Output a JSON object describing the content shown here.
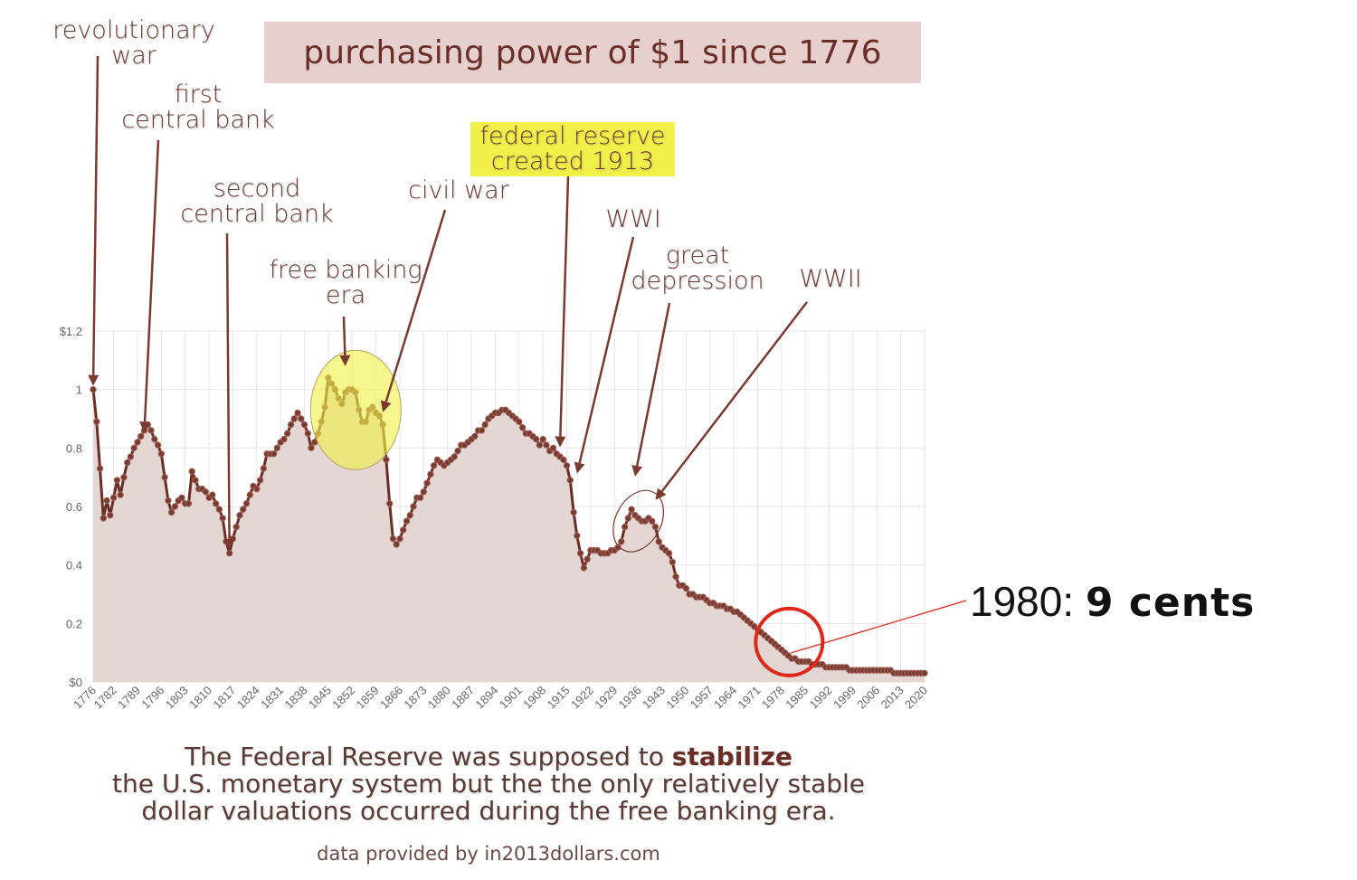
{
  "chart_data": {
    "type": "area",
    "title": "purchasing power of $1 since 1776",
    "xlabel": "",
    "ylabel": "",
    "xlim": [
      1776,
      2020
    ],
    "ylim": [
      0,
      1.2
    ],
    "grid": true,
    "y_ticks": [
      "$0",
      "0.2",
      "0.4",
      "0.6",
      "0.8",
      "1",
      "$1.2"
    ],
    "x_ticks": [
      "1776",
      "1782",
      "1789",
      "1796",
      "1803",
      "1810",
      "1817",
      "1824",
      "1831",
      "1838",
      "1845",
      "1852",
      "1859",
      "1866",
      "1873",
      "1880",
      "1887",
      "1894",
      "1901",
      "1908",
      "1915",
      "1922",
      "1929",
      "1936",
      "1943",
      "1950",
      "1957",
      "1964",
      "1971",
      "1978",
      "1985",
      "1992",
      "1999",
      "2006",
      "2013",
      "2020"
    ],
    "series": [
      {
        "line_color": "#6b2e26",
        "fill_color": "#e3d6d3",
        "points": [
          [
            1776,
            1.0
          ],
          [
            1777,
            0.89
          ],
          [
            1778,
            0.73
          ],
          [
            1779,
            0.56
          ],
          [
            1780,
            0.62
          ],
          [
            1781,
            0.57
          ],
          [
            1782,
            0.63
          ],
          [
            1783,
            0.69
          ],
          [
            1784,
            0.64
          ],
          [
            1785,
            0.7
          ],
          [
            1786,
            0.75
          ],
          [
            1787,
            0.77
          ],
          [
            1788,
            0.8
          ],
          [
            1789,
            0.82
          ],
          [
            1790,
            0.84
          ],
          [
            1791,
            0.86
          ],
          [
            1792,
            0.88
          ],
          [
            1793,
            0.86
          ],
          [
            1794,
            0.83
          ],
          [
            1795,
            0.81
          ],
          [
            1796,
            0.78
          ],
          [
            1797,
            0.7
          ],
          [
            1798,
            0.62
          ],
          [
            1799,
            0.58
          ],
          [
            1800,
            0.6
          ],
          [
            1801,
            0.62
          ],
          [
            1802,
            0.63
          ],
          [
            1803,
            0.61
          ],
          [
            1804,
            0.61
          ],
          [
            1805,
            0.72
          ],
          [
            1806,
            0.69
          ],
          [
            1807,
            0.66
          ],
          [
            1808,
            0.66
          ],
          [
            1809,
            0.65
          ],
          [
            1810,
            0.63
          ],
          [
            1811,
            0.64
          ],
          [
            1812,
            0.61
          ],
          [
            1813,
            0.59
          ],
          [
            1814,
            0.56
          ],
          [
            1815,
            0.48
          ],
          [
            1816,
            0.44
          ],
          [
            1817,
            0.49
          ],
          [
            1818,
            0.53
          ],
          [
            1819,
            0.57
          ],
          [
            1820,
            0.59
          ],
          [
            1821,
            0.61
          ],
          [
            1822,
            0.64
          ],
          [
            1823,
            0.67
          ],
          [
            1824,
            0.66
          ],
          [
            1825,
            0.69
          ],
          [
            1826,
            0.73
          ],
          [
            1827,
            0.78
          ],
          [
            1828,
            0.78
          ],
          [
            1829,
            0.78
          ],
          [
            1830,
            0.8
          ],
          [
            1831,
            0.82
          ],
          [
            1832,
            0.83
          ],
          [
            1833,
            0.85
          ],
          [
            1834,
            0.88
          ],
          [
            1835,
            0.9
          ],
          [
            1836,
            0.92
          ],
          [
            1837,
            0.9
          ],
          [
            1838,
            0.88
          ],
          [
            1839,
            0.85
          ],
          [
            1840,
            0.8
          ],
          [
            1841,
            0.82
          ],
          [
            1842,
            0.85
          ],
          [
            1843,
            0.89
          ],
          [
            1844,
            0.94
          ],
          [
            1845,
            1.04
          ],
          [
            1846,
            1.02
          ],
          [
            1847,
            1.0
          ],
          [
            1848,
            0.97
          ],
          [
            1849,
            0.95
          ],
          [
            1850,
            0.99
          ],
          [
            1851,
            1.0
          ],
          [
            1852,
            1.0
          ],
          [
            1853,
            0.99
          ],
          [
            1854,
            0.93
          ],
          [
            1855,
            0.89
          ],
          [
            1856,
            0.89
          ],
          [
            1857,
            0.93
          ],
          [
            1858,
            0.94
          ],
          [
            1859,
            0.92
          ],
          [
            1860,
            0.91
          ],
          [
            1861,
            0.88
          ],
          [
            1862,
            0.76
          ],
          [
            1863,
            0.61
          ],
          [
            1864,
            0.49
          ],
          [
            1865,
            0.47
          ],
          [
            1866,
            0.49
          ],
          [
            1867,
            0.52
          ],
          [
            1868,
            0.55
          ],
          [
            1869,
            0.57
          ],
          [
            1870,
            0.6
          ],
          [
            1871,
            0.63
          ],
          [
            1872,
            0.63
          ],
          [
            1873,
            0.65
          ],
          [
            1874,
            0.68
          ],
          [
            1875,
            0.71
          ],
          [
            1876,
            0.74
          ],
          [
            1877,
            0.76
          ],
          [
            1878,
            0.75
          ],
          [
            1879,
            0.74
          ],
          [
            1880,
            0.75
          ],
          [
            1881,
            0.76
          ],
          [
            1882,
            0.77
          ],
          [
            1883,
            0.79
          ],
          [
            1884,
            0.81
          ],
          [
            1885,
            0.81
          ],
          [
            1886,
            0.82
          ],
          [
            1887,
            0.83
          ],
          [
            1888,
            0.84
          ],
          [
            1889,
            0.86
          ],
          [
            1890,
            0.86
          ],
          [
            1891,
            0.88
          ],
          [
            1892,
            0.9
          ],
          [
            1893,
            0.91
          ],
          [
            1894,
            0.92
          ],
          [
            1895,
            0.92
          ],
          [
            1896,
            0.93
          ],
          [
            1897,
            0.93
          ],
          [
            1898,
            0.92
          ],
          [
            1899,
            0.91
          ],
          [
            1900,
            0.9
          ],
          [
            1901,
            0.89
          ],
          [
            1902,
            0.87
          ],
          [
            1903,
            0.85
          ],
          [
            1904,
            0.85
          ],
          [
            1905,
            0.84
          ],
          [
            1906,
            0.83
          ],
          [
            1907,
            0.81
          ],
          [
            1908,
            0.83
          ],
          [
            1909,
            0.81
          ],
          [
            1910,
            0.79
          ],
          [
            1911,
            0.8
          ],
          [
            1912,
            0.78
          ],
          [
            1913,
            0.77
          ],
          [
            1914,
            0.76
          ],
          [
            1915,
            0.74
          ],
          [
            1916,
            0.69
          ],
          [
            1917,
            0.58
          ],
          [
            1918,
            0.5
          ],
          [
            1919,
            0.44
          ],
          [
            1920,
            0.39
          ],
          [
            1921,
            0.42
          ],
          [
            1922,
            0.45
          ],
          [
            1923,
            0.45
          ],
          [
            1924,
            0.45
          ],
          [
            1925,
            0.44
          ],
          [
            1926,
            0.44
          ],
          [
            1927,
            0.44
          ],
          [
            1928,
            0.45
          ],
          [
            1929,
            0.45
          ],
          [
            1930,
            0.46
          ],
          [
            1931,
            0.48
          ],
          [
            1932,
            0.53
          ],
          [
            1933,
            0.56
          ],
          [
            1934,
            0.59
          ],
          [
            1935,
            0.57
          ],
          [
            1936,
            0.56
          ],
          [
            1937,
            0.55
          ],
          [
            1938,
            0.55
          ],
          [
            1939,
            0.56
          ],
          [
            1940,
            0.55
          ],
          [
            1941,
            0.53
          ],
          [
            1942,
            0.48
          ],
          [
            1943,
            0.46
          ],
          [
            1944,
            0.45
          ],
          [
            1945,
            0.44
          ],
          [
            1946,
            0.41
          ],
          [
            1947,
            0.36
          ],
          [
            1948,
            0.33
          ],
          [
            1949,
            0.33
          ],
          [
            1950,
            0.32
          ],
          [
            1951,
            0.3
          ],
          [
            1952,
            0.3
          ],
          [
            1953,
            0.29
          ],
          [
            1954,
            0.29
          ],
          [
            1955,
            0.29
          ],
          [
            1956,
            0.28
          ],
          [
            1957,
            0.27
          ],
          [
            1958,
            0.27
          ],
          [
            1959,
            0.26
          ],
          [
            1960,
            0.26
          ],
          [
            1961,
            0.26
          ],
          [
            1962,
            0.25
          ],
          [
            1963,
            0.25
          ],
          [
            1964,
            0.24
          ],
          [
            1965,
            0.24
          ],
          [
            1966,
            0.23
          ],
          [
            1967,
            0.22
          ],
          [
            1968,
            0.21
          ],
          [
            1969,
            0.2
          ],
          [
            1970,
            0.19
          ],
          [
            1971,
            0.18
          ],
          [
            1972,
            0.17
          ],
          [
            1973,
            0.16
          ],
          [
            1974,
            0.15
          ],
          [
            1975,
            0.14
          ],
          [
            1976,
            0.13
          ],
          [
            1977,
            0.12
          ],
          [
            1978,
            0.11
          ],
          [
            1979,
            0.1
          ],
          [
            1980,
            0.09
          ],
          [
            1981,
            0.08
          ],
          [
            1982,
            0.08
          ],
          [
            1983,
            0.07
          ],
          [
            1984,
            0.07
          ],
          [
            1985,
            0.07
          ],
          [
            1986,
            0.07
          ],
          [
            1987,
            0.06
          ],
          [
            1988,
            0.06
          ],
          [
            1989,
            0.06
          ],
          [
            1990,
            0.06
          ],
          [
            1991,
            0.05
          ],
          [
            1992,
            0.05
          ],
          [
            1993,
            0.05
          ],
          [
            1994,
            0.05
          ],
          [
            1995,
            0.05
          ],
          [
            1996,
            0.05
          ],
          [
            1997,
            0.05
          ],
          [
            1998,
            0.04
          ],
          [
            1999,
            0.04
          ],
          [
            2000,
            0.04
          ],
          [
            2001,
            0.04
          ],
          [
            2002,
            0.04
          ],
          [
            2003,
            0.04
          ],
          [
            2004,
            0.04
          ],
          [
            2005,
            0.04
          ],
          [
            2006,
            0.04
          ],
          [
            2007,
            0.04
          ],
          [
            2008,
            0.04
          ],
          [
            2009,
            0.04
          ],
          [
            2010,
            0.04
          ],
          [
            2011,
            0.03
          ],
          [
            2012,
            0.03
          ],
          [
            2013,
            0.03
          ],
          [
            2014,
            0.03
          ],
          [
            2015,
            0.03
          ],
          [
            2016,
            0.03
          ],
          [
            2017,
            0.03
          ],
          [
            2018,
            0.03
          ],
          [
            2019,
            0.03
          ],
          [
            2020,
            0.03
          ]
        ]
      }
    ],
    "annotations": [
      {
        "lines": [
          "revolutionary",
          "war"
        ],
        "year": 1776,
        "value": 1.0
      },
      {
        "lines": [
          "first",
          "central bank"
        ],
        "year": 1791,
        "value": 0.84
      },
      {
        "lines": [
          "second",
          "central bank"
        ],
        "year": 1816,
        "value": 0.44
      },
      {
        "lines": [
          "free banking",
          "era"
        ],
        "year": 1850,
        "value": 1.08
      },
      {
        "lines": [
          "civil war"
        ],
        "year": 1861,
        "value": 0.91
      },
      {
        "lines": [
          "federal reserve",
          "created 1913"
        ],
        "year": 1913,
        "value": 0.79,
        "highlight_color": "#f1f04a"
      },
      {
        "lines": [
          "WWI"
        ],
        "year": 1918,
        "value": 0.7
      },
      {
        "lines": [
          "great",
          "depression"
        ],
        "year": 1935,
        "value": 0.69
      },
      {
        "lines": [
          "WWII"
        ],
        "year": 1941,
        "value": 0.61
      }
    ],
    "callout": {
      "label": "1980: ",
      "value_text": "9 cents",
      "year": 1980,
      "value": 0.09,
      "color": "#e0271a"
    },
    "highlight_ellipses": [
      {
        "label": "free banking era",
        "year_start": 1843,
        "year_end": 1861,
        "fill": "#f1f04a"
      },
      {
        "label": "great depression",
        "year_start": 1930,
        "year_end": 1942,
        "fill": "none"
      }
    ]
  },
  "footer": {
    "line1_before": "The Federal Reserve was supposed to ",
    "line1_bold": "stabilize",
    "line2": "the U.S. monetary system but the the only relatively stable",
    "line3": "dollar valuations occurred during the free banking era."
  },
  "credit": "data provided by in2013dollars.com"
}
